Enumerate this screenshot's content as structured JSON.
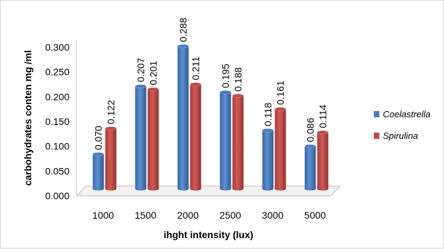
{
  "chart_data": {
    "type": "bar",
    "title": "",
    "xlabel": "ihght intensity (lux)",
    "ylabel": "carbohydrates conten mg /ml",
    "categories": [
      "1000",
      "1500",
      "2000",
      "2500",
      "3000",
      "5000"
    ],
    "ylim": [
      0,
      0.3
    ],
    "yticks": [
      "0.000",
      "0.050",
      "0.100",
      "0.150",
      "0.200",
      "0.250",
      "0.300"
    ],
    "grid": false,
    "legend_position": "right",
    "series": [
      {
        "name": "Coelastrella",
        "color": "#4a7ebb",
        "values": [
          0.07,
          0.207,
          0.288,
          0.195,
          0.118,
          0.086
        ],
        "labels": [
          "0.070",
          "0.207",
          "0.288",
          "0.195",
          "0.118",
          "0.086"
        ]
      },
      {
        "name": "Spirulina",
        "color": "#be4b48",
        "values": [
          0.122,
          0.201,
          0.211,
          0.188,
          0.161,
          0.114
        ],
        "labels": [
          "0.122",
          "0.201",
          "0.211",
          "0.188",
          "0.161",
          "0.114"
        ]
      }
    ]
  }
}
